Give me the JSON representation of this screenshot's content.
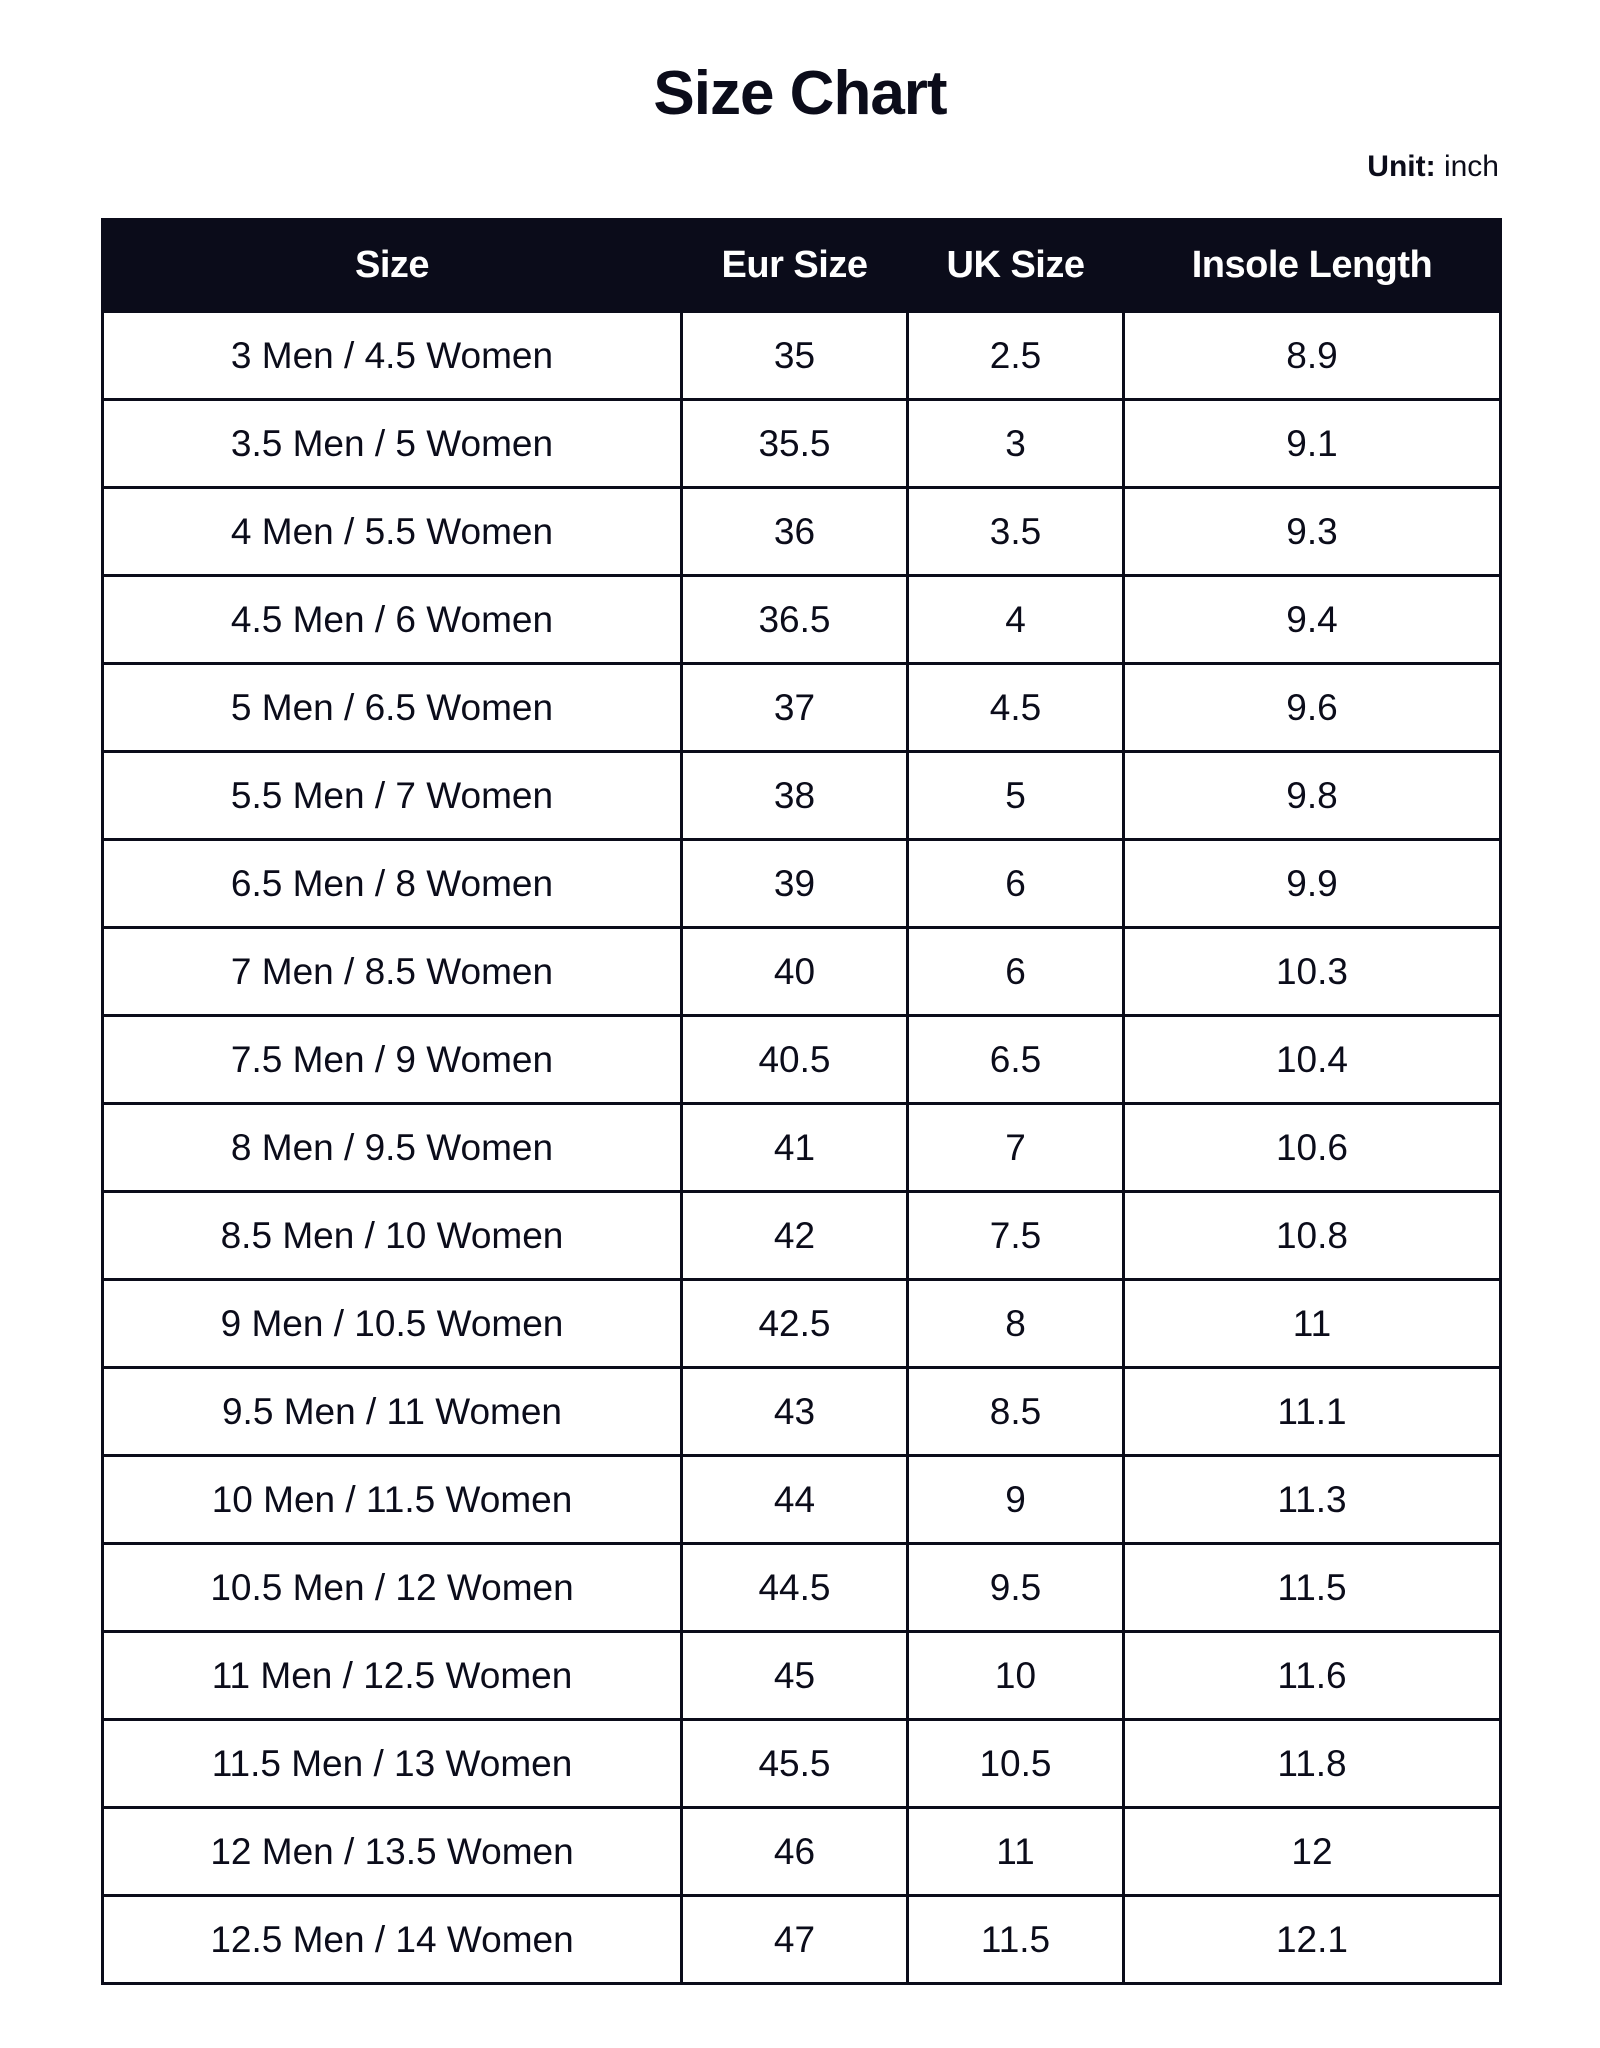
{
  "title": "Size Chart",
  "unit": {
    "label": "Unit:",
    "value": "inch"
  },
  "table": {
    "headers": [
      "Size",
      "Eur Size",
      "UK Size",
      "Insole Length"
    ],
    "rows": [
      [
        "3 Men / 4.5 Women",
        "35",
        "2.5",
        "8.9"
      ],
      [
        "3.5 Men / 5 Women",
        "35.5",
        "3",
        "9.1"
      ],
      [
        "4 Men / 5.5 Women",
        "36",
        "3.5",
        "9.3"
      ],
      [
        "4.5 Men / 6 Women",
        "36.5",
        "4",
        "9.4"
      ],
      [
        "5 Men / 6.5 Women",
        "37",
        "4.5",
        "9.6"
      ],
      [
        "5.5 Men / 7 Women",
        "38",
        "5",
        "9.8"
      ],
      [
        "6.5 Men / 8 Women",
        "39",
        "6",
        "9.9"
      ],
      [
        "7 Men / 8.5 Women",
        "40",
        "6",
        "10.3"
      ],
      [
        "7.5 Men / 9 Women",
        "40.5",
        "6.5",
        "10.4"
      ],
      [
        "8 Men / 9.5 Women",
        "41",
        "7",
        "10.6"
      ],
      [
        "8.5 Men / 10 Women",
        "42",
        "7.5",
        "10.8"
      ],
      [
        "9 Men / 10.5 Women",
        "42.5",
        "8",
        "11"
      ],
      [
        "9.5 Men / 11 Women",
        "43",
        "8.5",
        "11.1"
      ],
      [
        "10 Men / 11.5 Women",
        "44",
        "9",
        "11.3"
      ],
      [
        "10.5 Men / 12 Women",
        "44.5",
        "9.5",
        "11.5"
      ],
      [
        "11 Men / 12.5 Women",
        "45",
        "10",
        "11.6"
      ],
      [
        "11.5 Men / 13 Women",
        "45.5",
        "10.5",
        "11.8"
      ],
      [
        "12 Men / 13.5 Women",
        "46",
        "11",
        "12"
      ],
      [
        "12.5 Men / 14 Women",
        "47",
        "11.5",
        "12.1"
      ]
    ]
  },
  "colors": {
    "header_bg": "#0b0c1a",
    "header_text": "#ffffff",
    "border": "#0b0c1a"
  }
}
